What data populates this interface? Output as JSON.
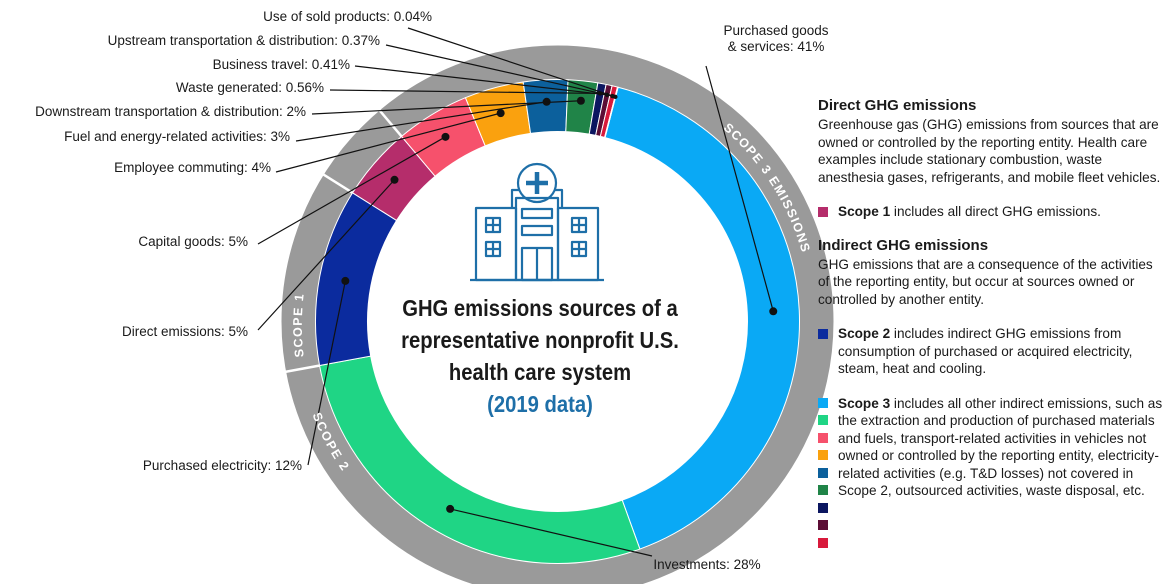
{
  "chart_data": {
    "type": "donut",
    "title": "GHG emissions sources of a representative nonprofit U.S. health care system",
    "subtitle": "(2019 data)",
    "unit": "%",
    "slices": [
      {
        "label": "Purchased goods & services",
        "display": "Purchased goods\n& services: 41%",
        "value": 41,
        "color": "#0aa9f5",
        "scope": "Scope 3"
      },
      {
        "label": "Investments",
        "display": "Investments: 28%",
        "value": 28,
        "color": "#1fd585",
        "scope": "Scope 3"
      },
      {
        "label": "Purchased electricity",
        "display": "Purchased electricity: 12%",
        "value": 12,
        "color": "#0b2b9e",
        "scope": "Scope 2"
      },
      {
        "label": "Direct emissions",
        "display": "Direct emissions: 5%",
        "value": 5,
        "color": "#b52d6b",
        "scope": "Scope 1"
      },
      {
        "label": "Capital goods",
        "display": "Capital goods: 5%",
        "value": 5,
        "color": "#f6516c",
        "scope": "Scope 3"
      },
      {
        "label": "Employee commuting",
        "display": "Employee commuting: 4%",
        "value": 4,
        "color": "#faa10e",
        "scope": "Scope 3"
      },
      {
        "label": "Fuel and energy-related activities",
        "display": "Fuel and energy-related activities: 3%",
        "value": 3,
        "color": "#0c609c",
        "scope": "Scope 3"
      },
      {
        "label": "Downstream transportation & distribution",
        "display": "Downstream transportation & distribution: 2%",
        "value": 2,
        "color": "#208448",
        "scope": "Scope 3"
      },
      {
        "label": "Waste generated",
        "display": "Waste generated: 0.56%",
        "value": 0.56,
        "color": "#0b1660",
        "scope": "Scope 3"
      },
      {
        "label": "Business travel",
        "display": "Business travel: 0.41%",
        "value": 0.41,
        "color": "#5c0d35",
        "scope": "Scope 3"
      },
      {
        "label": "Upstream transportation & distribution",
        "display": "Upstream transportation & distribution: 0.37%",
        "value": 0.37,
        "color": "#d8193b",
        "scope": "Scope 3"
      },
      {
        "label": "Use of sold products",
        "display": "Use of sold products: 0.04%",
        "value": 0.04,
        "color": "#e25a82",
        "scope": "Scope 3"
      }
    ],
    "scope_ring": [
      {
        "label": "SCOPE 3 EMISSIONS",
        "color": "#9a9a9a"
      },
      {
        "label": "SCOPE 2",
        "color": "#9a9a9a"
      },
      {
        "label": "SCOPE 1",
        "color": "#9a9a9a"
      }
    ]
  },
  "legend": {
    "direct_heading": "Direct GHG emissions",
    "direct_text": "Greenhouse gas (GHG) emissions from sources that are owned or controlled by the reporting entity. Health care examples include stationary combustion, waste anesthesia gases, refrigerants, and mobile fleet vehicles.",
    "scope1_bold": "Scope 1",
    "scope1_text": " includes all direct GHG emissions.",
    "indirect_heading": "Indirect GHG emissions",
    "indirect_text": "GHG emissions that are a consequence of the activities of the reporting entity, but occur at sources owned or controlled by another entity.",
    "scope2_bold": "Scope 2",
    "scope2_text": " includes indirect GHG emissions from consumption of purchased or acquired electricity, steam, heat and cooling.",
    "scope3_bold": "Scope 3",
    "scope3_text": " includes all other indirect emissions, such as the extraction and production of purchased materials and fuels, transport-related activities in vehicles not owned or controlled by the reporting entity, electricity-related activities (e.g. T&D losses) not covered in Scope 2, outsourced activities, waste disposal, etc.",
    "scope1_color": "#b52d6b",
    "scope2_color": "#0b2b9e",
    "scope3_colors": [
      "#0aa9f5",
      "#1fd585",
      "#f6516c",
      "#faa10e",
      "#0c609c",
      "#208448",
      "#0b1660",
      "#5c0d35",
      "#d8193b"
    ]
  },
  "icon": "hospital-building-icon"
}
